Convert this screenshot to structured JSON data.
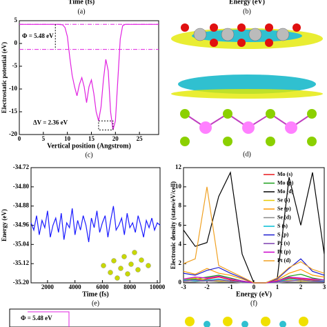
{
  "top_fragments": {
    "left_xlabel": "Time (fs)",
    "left_panel": "(a)",
    "right_xlabel": "Energy (eV)",
    "right_panel": "(b)"
  },
  "panel_d_label": "(d)",
  "bottom_fragment": {
    "annotation": "Φ = 5.48 eV"
  },
  "chart_data": [
    {
      "type": "line",
      "panel_label": "(c)",
      "xlabel": "Vertical position (Angstrom)",
      "ylabel": "Electrostatic potential (eV)",
      "xlim": [
        0,
        29
      ],
      "ylim": [
        -20,
        5
      ],
      "xticks": [
        0,
        5,
        10,
        15,
        20,
        25
      ],
      "yticks": [
        5,
        0,
        -5,
        -10,
        -15,
        -20
      ],
      "color": "#e020e0",
      "hlines": [
        4.2,
        -1.3
      ],
      "x": [
        0,
        4,
        8,
        9,
        9.5,
        10,
        10.5,
        11,
        11.5,
        12,
        12.5,
        13,
        13.5,
        14,
        14.5,
        15,
        15.5,
        16,
        16.5,
        17,
        17.5,
        18,
        18.5,
        19,
        19.5,
        20,
        20.5,
        21,
        21.5,
        22,
        29
      ],
      "values": [
        4.2,
        4.2,
        4.2,
        4.1,
        3.5,
        1.5,
        -3,
        -7,
        -9.5,
        -11.5,
        -9,
        -7.5,
        -9.5,
        -13,
        -9.5,
        -8,
        -11,
        -15,
        -17,
        -14,
        -8,
        -3.5,
        -6,
        -15,
        -19,
        -17,
        -8,
        1,
        3.9,
        4.2,
        4.2
      ],
      "annotations": [
        "Φ = 5.48 eV",
        "ΔV = 2.36 eV"
      ]
    },
    {
      "type": "line",
      "panel_label": "(e)",
      "xlabel": "Time (fs)",
      "ylabel": "Energy (eV)",
      "xlim": [
        800,
        10200
      ],
      "ylim": [
        -35.2,
        -34.72
      ],
      "xticks": [
        2000,
        4000,
        6000,
        8000,
        10000
      ],
      "yticks": [
        -34.72,
        {
          "value": -34.8,
          "label": "-34.80"
        },
        -34.88,
        -34.96,
        -35.04,
        -35.12,
        {
          "value": -35.2,
          "label": "-35.20"
        }
      ],
      "color": "#1a1aff",
      "x": [
        800,
        1000,
        1200,
        1400,
        1600,
        1800,
        2000,
        2200,
        2400,
        2600,
        2800,
        3000,
        3200,
        3400,
        3600,
        3800,
        4000,
        4200,
        4400,
        4600,
        4800,
        5000,
        5200,
        5400,
        5600,
        5800,
        6000,
        6200,
        6400,
        6600,
        6800,
        7000,
        7200,
        7400,
        7600,
        7800,
        8000,
        8200,
        8400,
        8600,
        8800,
        9000,
        9200,
        9400,
        9600,
        9800,
        10000,
        10200
      ],
      "values": [
        -34.95,
        -34.98,
        -34.92,
        -35.0,
        -34.94,
        -34.97,
        -34.9,
        -35.01,
        -34.96,
        -34.93,
        -34.99,
        -34.91,
        -35.02,
        -34.95,
        -34.97,
        -34.89,
        -35.0,
        -34.94,
        -34.98,
        -34.92,
        -34.96,
        -35.03,
        -34.93,
        -34.97,
        -34.9,
        -34.99,
        -34.95,
        -34.92,
        -35.01,
        -34.94,
        -34.88,
        -34.98,
        -34.96,
        -34.93,
        -35.0,
        -34.91,
        -34.97,
        -34.95,
        -34.99,
        -34.92,
        -34.96,
        -35.01,
        -34.94,
        -34.97,
        -34.93,
        -34.98,
        -34.95,
        -34.96
      ]
    },
    {
      "type": "line",
      "panel_label": "(f)",
      "xlabel": "Energy (eV)",
      "ylabel": "Electronic density (states/eV/cell)",
      "xlim": [
        -3,
        3
      ],
      "ylim": [
        0,
        12
      ],
      "xticks": [
        -3,
        -2,
        -1,
        0,
        1,
        2,
        3
      ],
      "yticks": [
        0,
        2,
        4,
        6,
        8,
        10,
        12
      ],
      "x": [
        -3,
        -2.5,
        -2,
        -1.5,
        -1,
        -0.5,
        0,
        0.5,
        1,
        1.5,
        2,
        2.5,
        3
      ],
      "series": [
        {
          "name": "Mo (s)",
          "color": "#e8161b",
          "values": [
            0.2,
            0.3,
            0.4,
            0.6,
            0.3,
            0.1,
            0,
            0,
            0.1,
            0.5,
            0.4,
            0.3,
            0.2
          ]
        },
        {
          "name": "Mo (p)",
          "color": "#1a9e1a",
          "values": [
            0.3,
            0.4,
            0.6,
            0.8,
            0.5,
            0.2,
            0,
            0,
            0.2,
            0.7,
            0.9,
            0.5,
            0.3
          ]
        },
        {
          "name": "Mo (d)",
          "color": "#000000",
          "values": [
            5.5,
            3.8,
            4.2,
            9,
            11.5,
            3,
            0,
            0,
            0.5,
            11,
            6,
            11.5,
            3
          ]
        },
        {
          "name": "Se (s)",
          "color": "#e6c800",
          "values": [
            0.4,
            0.5,
            0.3,
            0.2,
            0.1,
            0.1,
            0,
            0,
            0.1,
            0.3,
            0.2,
            0.2,
            0.1
          ]
        },
        {
          "name": "Se (p)",
          "color": "#ff9900",
          "values": [
            1.2,
            0.9,
            1.5,
            1,
            0.8,
            0.4,
            0,
            0,
            0.3,
            1,
            1.4,
            0.8,
            0.6
          ]
        },
        {
          "name": "Se (d)",
          "color": "#888888",
          "values": [
            0.1,
            0.1,
            0.2,
            0.1,
            0.1,
            0,
            0,
            0,
            0,
            0.1,
            0.1,
            0.1,
            0.1
          ]
        },
        {
          "name": "S (s)",
          "color": "#00bcd4",
          "values": [
            0.3,
            0.2,
            0.3,
            0.4,
            0.2,
            0.1,
            0,
            0,
            0.1,
            0.4,
            0.3,
            0.2,
            0.2
          ]
        },
        {
          "name": "S (p)",
          "color": "#1b1bd0",
          "values": [
            1,
            0.8,
            1.3,
            1.6,
            1,
            0.5,
            0,
            0,
            0.4,
            1.5,
            2.5,
            1.2,
            0.8
          ]
        },
        {
          "name": "Pt (s)",
          "color": "#7a3fb0",
          "values": [
            0.2,
            0.3,
            0.2,
            0.3,
            0.2,
            0.1,
            0,
            0,
            0.1,
            0.2,
            0.3,
            0.2,
            0.1
          ]
        },
        {
          "name": "Pt (p)",
          "color": "#cc00cc",
          "values": [
            0.4,
            0.6,
            0.5,
            0.7,
            0.4,
            0.2,
            0,
            0,
            0.2,
            0.6,
            0.5,
            0.4,
            0.3
          ]
        },
        {
          "name": "Pt (d)",
          "color": "#f0a020",
          "values": [
            2,
            2.5,
            10,
            1.8,
            1.2,
            0.6,
            0,
            0,
            0.5,
            1.6,
            2.2,
            1.4,
            1
          ]
        }
      ]
    }
  ]
}
